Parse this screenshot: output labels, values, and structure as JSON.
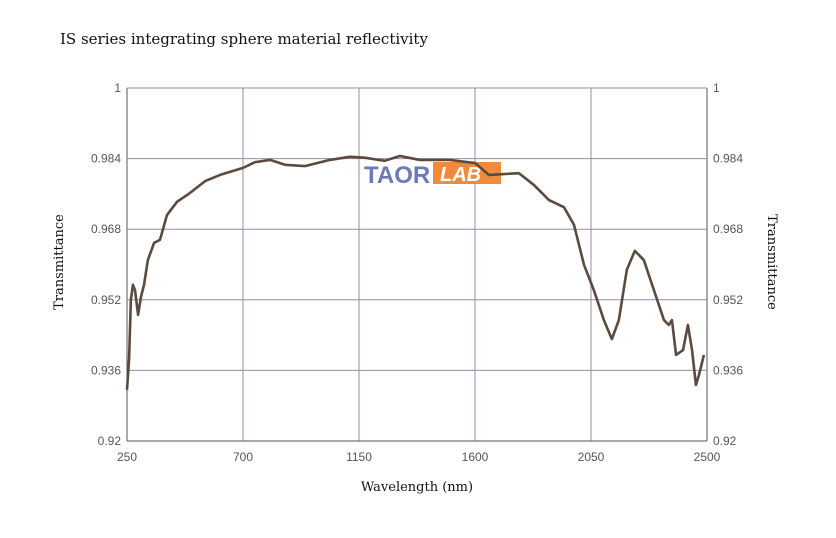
{
  "chart_data": {
    "type": "line",
    "title": "IS series integrating sphere material reflectivity",
    "xlabel": "Wavelength (nm)",
    "ylabel": "Transmittance",
    "ylabel_right": "Transmittance",
    "xlim": [
      250,
      2500
    ],
    "ylim": [
      0.92,
      1
    ],
    "x_ticks": [
      "250",
      "700",
      "1150",
      "1600",
      "2050",
      "2500"
    ],
    "y_ticks": [
      "1",
      "0.984",
      "0.968",
      "0.952",
      "0.936",
      "0.92"
    ],
    "grid": true,
    "line_color": "#5a4a40",
    "grid_color": "#9a8aa8",
    "series": [
      {
        "x": [
          250,
          258,
          265,
          273,
          281,
          293,
          304,
          316,
          331,
          355,
          378,
          405,
          444,
          494,
          553,
          611,
          700,
          747,
          805,
          863,
          940,
          1037,
          1114,
          1172,
          1250,
          1308,
          1386,
          1502,
          1600,
          1654,
          1712,
          1770,
          1829,
          1887,
          1945,
          1984,
          2023,
          2061,
          2100,
          2131,
          2158,
          2189,
          2220,
          2255,
          2294,
          2333,
          2352,
          2364,
          2380,
          2407,
          2426,
          2442,
          2457,
          2469,
          2488
        ],
        "y": [
          0.9316,
          0.9384,
          0.952,
          0.9554,
          0.9542,
          0.9486,
          0.9526,
          0.9554,
          0.961,
          0.9649,
          0.9656,
          0.9712,
          0.9742,
          0.9762,
          0.9789,
          0.9803,
          0.9819,
          0.9832,
          0.9837,
          0.9826,
          0.9823,
          0.9837,
          0.9844,
          0.9842,
          0.9835,
          0.9846,
          0.9837,
          0.9837,
          0.983,
          0.9803,
          0.9805,
          0.9807,
          0.978,
          0.9746,
          0.973,
          0.969,
          0.9599,
          0.9542,
          0.9474,
          0.9431,
          0.9474,
          0.9588,
          0.9631,
          0.961,
          0.9542,
          0.9474,
          0.9463,
          0.9474,
          0.9395,
          0.9406,
          0.9463,
          0.9406,
          0.9327,
          0.935,
          0.9395
        ]
      }
    ]
  },
  "watermark": {
    "text_a": "TAOR",
    "text_b": "LAB",
    "color_a": "#6a7bb8",
    "color_b": "#f08a3c"
  }
}
